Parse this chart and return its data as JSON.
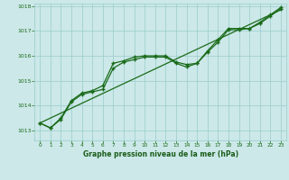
{
  "bg_color": "#cce8e8",
  "grid_color": "#99cccc",
  "line_color": "#1a6b1a",
  "marker_color": "#1a6b1a",
  "title": "Graphe pression niveau de la mer (hPa)",
  "title_color": "#1a5c1a",
  "xlim": [
    -0.5,
    23.5
  ],
  "ylim": [
    1012.6,
    1018.1
  ],
  "yticks": [
    1013,
    1014,
    1015,
    1016,
    1017,
    1018
  ],
  "xticks": [
    0,
    1,
    2,
    3,
    4,
    5,
    6,
    7,
    8,
    9,
    10,
    11,
    12,
    13,
    14,
    15,
    16,
    17,
    18,
    19,
    20,
    21,
    22,
    23
  ],
  "series1": [
    1013.3,
    1013.1,
    1013.5,
    1014.2,
    1014.5,
    1014.6,
    1014.8,
    1015.7,
    1015.8,
    1015.95,
    1016.0,
    1016.0,
    1016.0,
    1015.75,
    1015.65,
    1015.7,
    1016.2,
    1016.65,
    1017.1,
    1017.1,
    1017.1,
    1017.35,
    1017.65,
    1017.95
  ],
  "series2": [
    1013.3,
    1013.1,
    1013.45,
    1014.15,
    1014.45,
    1014.55,
    1014.65,
    1015.5,
    1015.75,
    1015.85,
    1015.95,
    1015.95,
    1015.95,
    1015.7,
    1015.55,
    1015.7,
    1016.15,
    1016.55,
    1017.05,
    1017.05,
    1017.1,
    1017.3,
    1017.6,
    1017.9
  ],
  "series3_x": [
    0,
    23
  ],
  "series3_y": [
    1013.3,
    1017.85
  ]
}
